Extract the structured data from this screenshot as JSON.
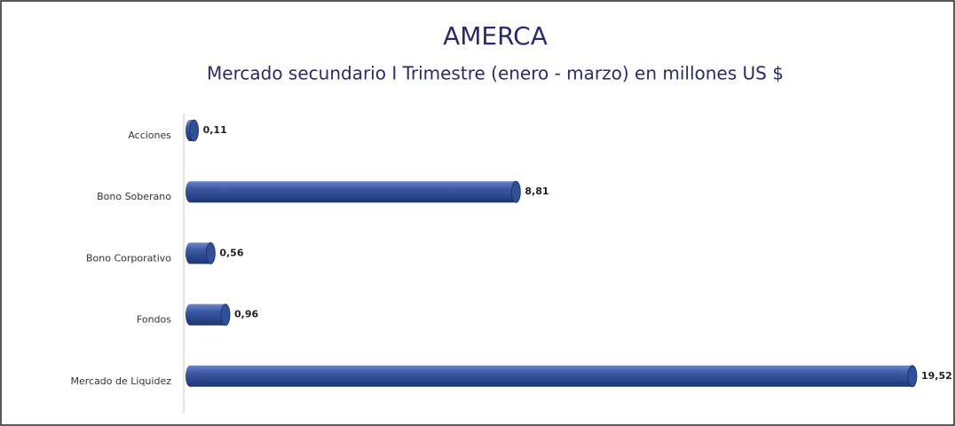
{
  "chart_data": {
    "type": "bar",
    "orientation": "horizontal",
    "title": "AMERCA",
    "subtitle": "Mercado secundario I Trimestre (enero - marzo) en millones US $",
    "categories": [
      "Acciones",
      "Bono Soberano",
      "Bono Corporativo",
      "Fondos",
      "Mercado de Liquidez"
    ],
    "values": [
      0.11,
      8.81,
      0.56,
      0.96,
      19.52
    ],
    "value_labels": [
      "0,11",
      "8,81",
      "0,56",
      "0,96",
      "19,52"
    ],
    "color": "#2f4f98",
    "xlim": [
      0,
      20
    ]
  }
}
